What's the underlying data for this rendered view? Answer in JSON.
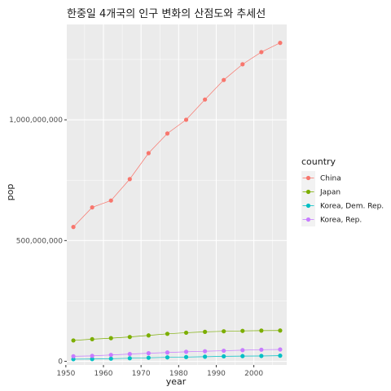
{
  "chart_data": {
    "type": "line",
    "title": "한중일 4개국의 인구 변화의 산점도와 추세선",
    "xlabel": "year",
    "ylabel": "pop",
    "x": [
      1952,
      1957,
      1962,
      1967,
      1972,
      1977,
      1982,
      1987,
      1992,
      1997,
      2002,
      2007
    ],
    "xlim": [
      1950.25,
      2008.75
    ],
    "ylim": [
      -15000000,
      1395000000
    ],
    "xticks": [
      1950,
      1960,
      1970,
      1980,
      1990,
      2000
    ],
    "xtick_labels": [
      "1950",
      "1960",
      "1970",
      "1980",
      "1990",
      "2000"
    ],
    "yticks": [
      0,
      500000000,
      1000000000
    ],
    "ytick_labels": [
      "0",
      "500,000,000",
      "1,000,000,000"
    ],
    "grid": true,
    "legend": {
      "title": "country",
      "position": "right"
    },
    "series": [
      {
        "name": "China",
        "color": "#F8766D",
        "values": [
          556263527,
          637408000,
          665770000,
          754550000,
          862030000,
          943455000,
          1000281000,
          1084035000,
          1164970000,
          1230075000,
          1280400000,
          1318683096
        ]
      },
      {
        "name": "Japan",
        "color": "#7CAE00",
        "values": [
          86459025,
          91563009,
          95831757,
          100825279,
          107188273,
          113872473,
          118454974,
          122091325,
          124329269,
          125956499,
          127065841,
          127467972
        ]
      },
      {
        "name": "Korea, Dem. Rep.",
        "color": "#00BFC4",
        "values": [
          8865488,
          9411381,
          10917494,
          12617009,
          14781241,
          16325320,
          17647518,
          19067554,
          20711375,
          21585105,
          22215365,
          23301725
        ]
      },
      {
        "name": "Korea, Rep.",
        "color": "#C77CFF",
        "values": [
          20947571,
          22611552,
          26420307,
          30131000,
          33505000,
          36436000,
          39326000,
          41622000,
          43805450,
          46173816,
          47969150,
          49044790
        ]
      }
    ]
  }
}
